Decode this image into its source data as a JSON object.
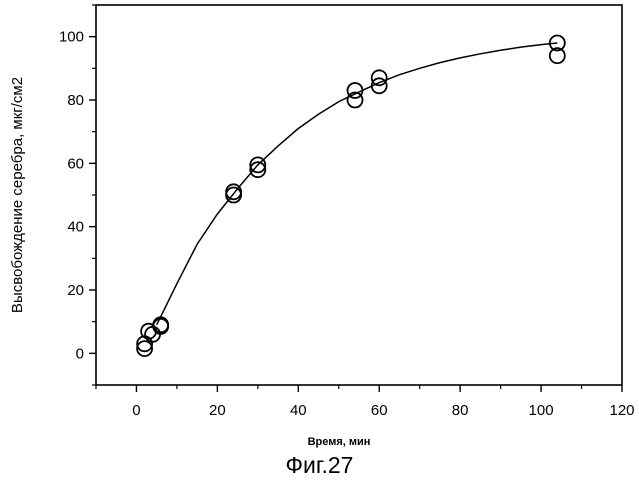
{
  "figure_caption": "Фиг.27",
  "chart_data": {
    "type": "scatter",
    "xlabel": "Время, мин",
    "ylabel": "Высвобождение серебра, мкг/см2",
    "xlim": [
      -10,
      120
    ],
    "ylim": [
      -10,
      110
    ],
    "x_ticks": [
      0,
      20,
      40,
      60,
      80,
      100,
      120
    ],
    "y_ticks": [
      0,
      20,
      40,
      60,
      80,
      100
    ],
    "grid": false,
    "series": [
      {
        "marker": "open-circle",
        "x": [
          2,
          2,
          3,
          4,
          6,
          6,
          24,
          24,
          30,
          30,
          54,
          54,
          60,
          60,
          104,
          104
        ],
        "y": [
          1.5,
          3,
          7,
          6,
          9,
          8.5,
          51,
          50,
          59.5,
          58,
          83,
          80,
          87,
          84.5,
          98,
          94
        ]
      }
    ],
    "fit_curve": {
      "x": [
        5,
        10,
        15,
        20,
        25,
        30,
        35,
        40,
        45,
        50,
        55,
        60,
        65,
        70,
        75,
        80,
        85,
        90,
        95,
        100,
        104
      ],
      "y": [
        9,
        22,
        34.5,
        44,
        52,
        59.5,
        65.5,
        71,
        75.5,
        79.5,
        82.5,
        85.5,
        88,
        90,
        91.8,
        93.3,
        94.6,
        95.7,
        96.7,
        97.5,
        98
      ]
    }
  }
}
